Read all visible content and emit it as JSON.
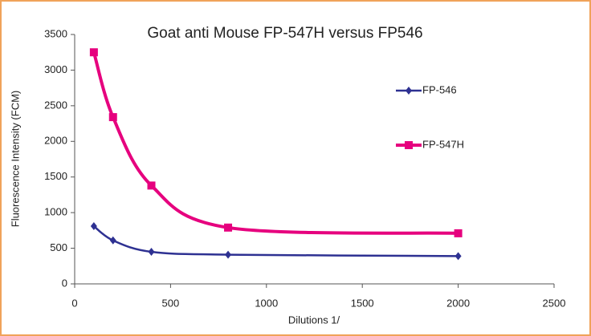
{
  "chart_data": {
    "type": "scatter-smooth",
    "title": "Goat anti Mouse FP-547H versus FP546",
    "xlabel": "Dilutions 1/",
    "ylabel": "Fluorescence Intensity (FCM)",
    "x": [
      100,
      200,
      400,
      800,
      2000
    ],
    "series": [
      {
        "name": "FP-546",
        "color": "#2e3192",
        "marker": "diamond",
        "values": [
          810,
          610,
          450,
          410,
          390
        ]
      },
      {
        "name": "FP-547H",
        "color": "#e6007e",
        "marker": "square",
        "values": [
          3250,
          2340,
          1380,
          790,
          710
        ]
      }
    ],
    "xlim": [
      0,
      2500
    ],
    "xticks": [
      0,
      500,
      1000,
      1500,
      2000,
      2500
    ],
    "ylim": [
      0,
      3500
    ],
    "yticks": [
      0,
      500,
      1000,
      1500,
      2000,
      2500,
      3000,
      3500
    ],
    "grid": false,
    "legend": "upper right"
  }
}
